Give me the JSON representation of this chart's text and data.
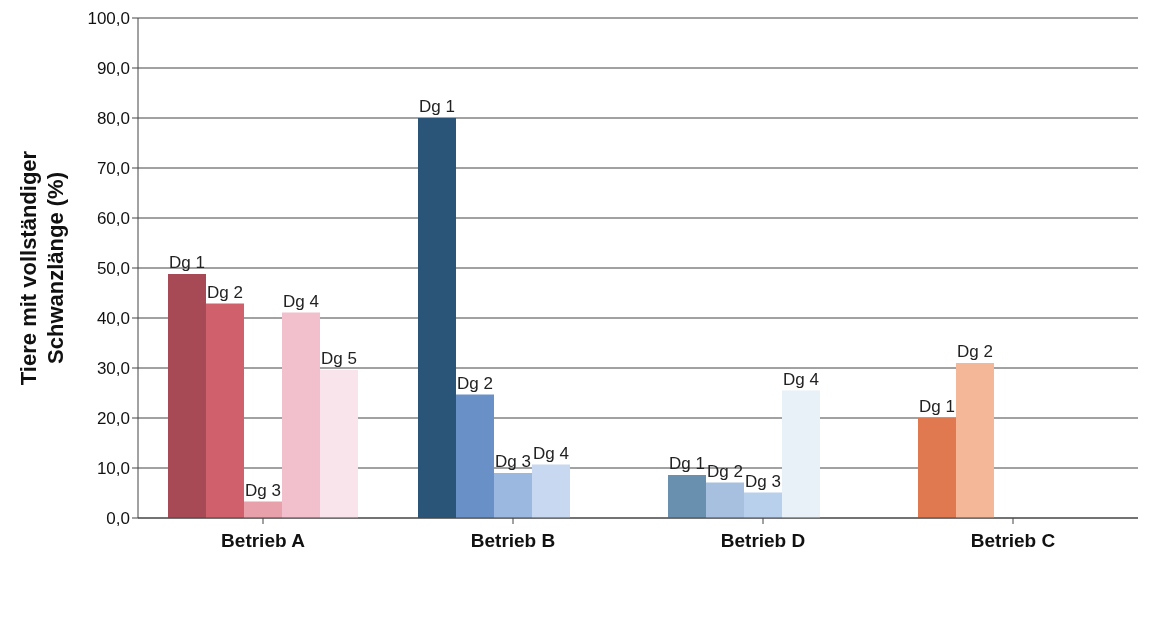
{
  "chart_data": {
    "type": "bar",
    "ylabel": "Tiere mit vollständiger Schwanzlänge (%)",
    "categories": [
      "Betrieb A",
      "Betrieb B",
      "Betrieb D",
      "Betrieb C"
    ],
    "series": [
      {
        "name": "Dg 1",
        "values": [
          48.8,
          80.0,
          8.6,
          20.0
        ],
        "colors": [
          "#a84a56",
          "#2a5478",
          "#6a90b0",
          "#e07850"
        ]
      },
      {
        "name": "Dg 2",
        "values": [
          42.9,
          24.7,
          7.1,
          31.0
        ],
        "colors": [
          "#d0606c",
          "#6a90c8",
          "#a8c0e0",
          "#f4b898"
        ]
      },
      {
        "name": "Dg 3",
        "values": [
          3.3,
          9.0,
          5.1,
          null
        ],
        "colors": [
          "#e8a0aa",
          "#9ab8e0",
          "#b8d0ec",
          null
        ]
      },
      {
        "name": "Dg 4",
        "values": [
          41.1,
          10.7,
          25.5,
          null
        ],
        "colors": [
          "#f2c0cc",
          "#c8d8f0",
          "#e8f0f8",
          null
        ]
      },
      {
        "name": "Dg 5",
        "values": [
          29.6,
          null,
          null,
          null
        ],
        "colors": [
          "#f8e4ea",
          null,
          null,
          null
        ]
      }
    ],
    "ylim": [
      0,
      100
    ],
    "yticks": [
      {
        "value": 0,
        "label": "0,0"
      },
      {
        "value": 10,
        "label": "10,0"
      },
      {
        "value": 20,
        "label": "20,0"
      },
      {
        "value": 30,
        "label": "30,0"
      },
      {
        "value": 40,
        "label": "40,0"
      },
      {
        "value": 50,
        "label": "50,0"
      },
      {
        "value": 60,
        "label": "60,0"
      },
      {
        "value": 70,
        "label": "70,0"
      },
      {
        "value": 80,
        "label": "80,0"
      },
      {
        "value": 90,
        "label": "90,0"
      },
      {
        "value": 100,
        "label": "100,0"
      }
    ],
    "grid": "y"
  }
}
